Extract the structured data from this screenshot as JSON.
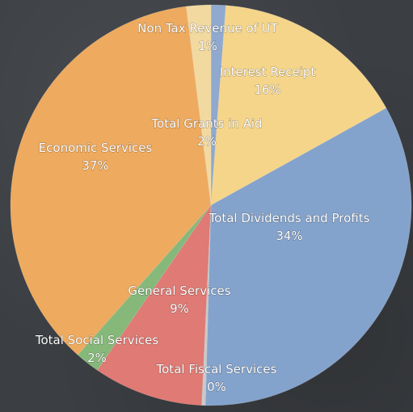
{
  "chart_data": {
    "type": "pie",
    "title": "",
    "slices": [
      {
        "label": "Non Tax Revenue of UT",
        "percent_label": "1%",
        "value": 1.2,
        "color": "#8fa9cf"
      },
      {
        "label": "Interest Receipt",
        "percent_label": "16%",
        "value": 16,
        "color": "#f5d58a"
      },
      {
        "label": "Total Dividends and Profits",
        "percent_label": "34%",
        "value": 34,
        "color": "#84a3cc"
      },
      {
        "label": "Total Fiscal Services",
        "percent_label": "0%",
        "value": 0.3,
        "color": "#c9c9c9"
      },
      {
        "label": "General Services",
        "percent_label": "9%",
        "value": 9,
        "color": "#e07a74"
      },
      {
        "label": "Total Social Services",
        "percent_label": "2%",
        "value": 2,
        "color": "#86b87a"
      },
      {
        "label": "Economic Services",
        "percent_label": "37%",
        "value": 37,
        "color": "#eeaa5e"
      },
      {
        "label": "Total Grants in Aid",
        "percent_label": "2%",
        "value": 2,
        "color": "#f2d9a0"
      }
    ]
  }
}
